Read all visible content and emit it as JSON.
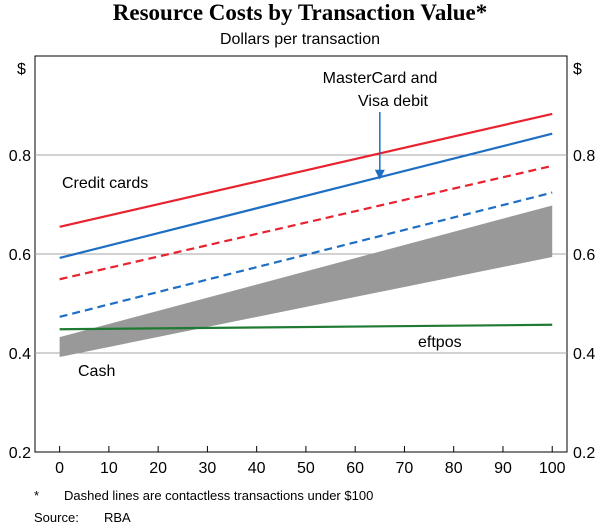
{
  "chart_data": {
    "type": "line",
    "title": "Resource Costs by Transaction Value*",
    "subtitle": "Dollars per transaction",
    "ylabel_left": "$",
    "ylabel_right": "$",
    "xlabel": "",
    "xlim": [
      -5,
      103
    ],
    "ylim": [
      0.2,
      1.0
    ],
    "x_ticks": [
      "0",
      "10",
      "20",
      "30",
      "40",
      "50",
      "60",
      "70",
      "80",
      "90",
      "100"
    ],
    "y_ticks": [
      "0.2",
      "0.4",
      "0.6",
      "0.8"
    ],
    "grid": "horizontal",
    "series": [
      {
        "name": "Credit cards",
        "style": "solid",
        "color": "#e8232f",
        "x": [
          0,
          100
        ],
        "y": [
          0.655,
          0.883
        ]
      },
      {
        "name": "Credit cards (contactless)",
        "style": "dashed",
        "color": "#e8232f",
        "x": [
          0,
          100
        ],
        "y": [
          0.549,
          0.778
        ]
      },
      {
        "name": "MasterCard and Visa debit",
        "style": "solid",
        "color": "#1e6fc4",
        "x": [
          0,
          100
        ],
        "y": [
          0.592,
          0.843
        ]
      },
      {
        "name": "MasterCard and Visa debit (contactless)",
        "style": "dashed",
        "color": "#1e6fc4",
        "x": [
          0,
          100
        ],
        "y": [
          0.473,
          0.724
        ]
      },
      {
        "name": "eftpos",
        "style": "solid",
        "color": "#1f7a33",
        "x": [
          0,
          100
        ],
        "y": [
          0.448,
          0.457
        ]
      }
    ],
    "band": {
      "name": "Cash",
      "color": "#999999",
      "x": [
        0,
        100
      ],
      "upper": [
        0.432,
        0.698
      ],
      "lower": [
        0.392,
        0.594
      ]
    },
    "labels": {
      "credit": "Credit cards",
      "debit_line1": "MasterCard and",
      "debit_line2": "Visa debit",
      "eftpos": "eftpos",
      "cash": "Cash"
    },
    "arrow_target": {
      "x": 65,
      "y": 0.75
    }
  },
  "footnote": {
    "marker": "*",
    "text": "Dashed lines are contactless transactions under $100"
  },
  "source": {
    "label": "Source:",
    "text": "RBA"
  }
}
